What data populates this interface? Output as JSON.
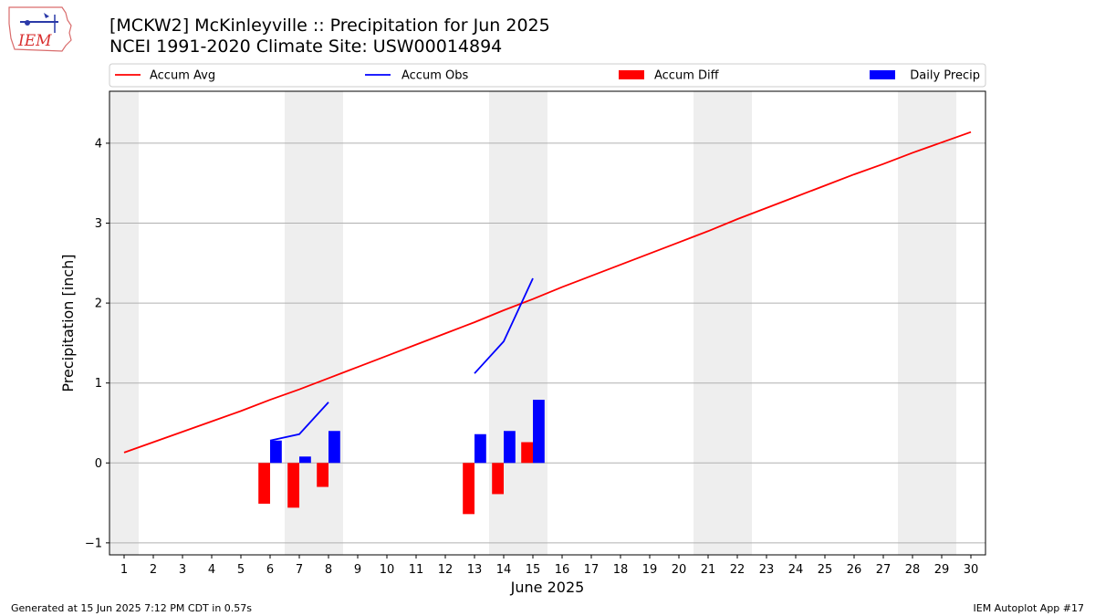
{
  "header": {
    "title_line1": "[MCKW2] McKinleyville :: Precipitation for Jun 2025",
    "title_line2": "NCEI 1991-2020 Climate Site: USW00014894",
    "logo_text": "IEM"
  },
  "footer": {
    "generated": "Generated at 15 Jun 2025 7:12 PM CDT in 0.57s",
    "app": "IEM Autoplot App #17"
  },
  "chart_data": {
    "type": "bar",
    "xlabel": "June 2025",
    "ylabel": "Precipitation [inch]",
    "xlim": [
      0.5,
      30.5
    ],
    "ylim": [
      -1.15,
      4.65
    ],
    "x_ticks": [
      1,
      2,
      3,
      4,
      5,
      6,
      7,
      8,
      9,
      10,
      11,
      12,
      13,
      14,
      15,
      16,
      17,
      18,
      19,
      20,
      21,
      22,
      23,
      24,
      25,
      26,
      27,
      28,
      29,
      30
    ],
    "y_ticks": [
      -1,
      0,
      1,
      2,
      3,
      4
    ],
    "grid": "horizontal",
    "weekend_shading": [
      [
        0.5,
        1.5
      ],
      [
        6.5,
        8.5
      ],
      [
        13.5,
        15.5
      ],
      [
        20.5,
        22.5
      ],
      [
        27.5,
        29.5
      ]
    ],
    "legend": {
      "placement": "top",
      "entries": [
        {
          "label": "Accum Avg",
          "kind": "line",
          "color": "#ff0000"
        },
        {
          "label": "Accum Obs",
          "kind": "line",
          "color": "#0000ff"
        },
        {
          "label": "Accum Diff",
          "kind": "bar",
          "color": "#ff0000"
        },
        {
          "label": "Daily Precip",
          "kind": "bar",
          "color": "#0000ff"
        }
      ]
    },
    "series": [
      {
        "name": "Accum Avg",
        "type": "line",
        "color": "#ff0000",
        "x": [
          1,
          2,
          3,
          4,
          5,
          6,
          7,
          8,
          9,
          10,
          11,
          12,
          13,
          14,
          15,
          16,
          17,
          18,
          19,
          20,
          21,
          22,
          23,
          24,
          25,
          26,
          27,
          28,
          29,
          30
        ],
        "values": [
          0.13,
          0.26,
          0.39,
          0.52,
          0.65,
          0.79,
          0.92,
          1.06,
          1.2,
          1.34,
          1.48,
          1.62,
          1.76,
          1.91,
          2.05,
          2.2,
          2.34,
          2.48,
          2.62,
          2.76,
          2.9,
          3.05,
          3.19,
          3.33,
          3.47,
          3.61,
          3.74,
          3.88,
          4.01,
          4.14
        ]
      },
      {
        "name": "Accum Obs",
        "type": "line",
        "color": "#0000ff",
        "segments": [
          {
            "x": [
              6,
              7,
              8
            ],
            "values": [
              0.28,
              0.36,
              0.76
            ]
          },
          {
            "x": [
              13,
              14,
              15
            ],
            "values": [
              1.12,
              1.52,
              2.31
            ]
          }
        ]
      },
      {
        "name": "Accum Diff",
        "type": "bar",
        "color": "#ff0000",
        "x": [
          6,
          7,
          8,
          13,
          14,
          15
        ],
        "values": [
          -0.51,
          -0.56,
          -0.3,
          -0.64,
          -0.39,
          0.26
        ]
      },
      {
        "name": "Daily Precip",
        "type": "bar",
        "color": "#0000ff",
        "x": [
          6,
          7,
          8,
          13,
          14,
          15
        ],
        "values": [
          0.28,
          0.08,
          0.4,
          0.36,
          0.4,
          0.79
        ]
      }
    ]
  }
}
